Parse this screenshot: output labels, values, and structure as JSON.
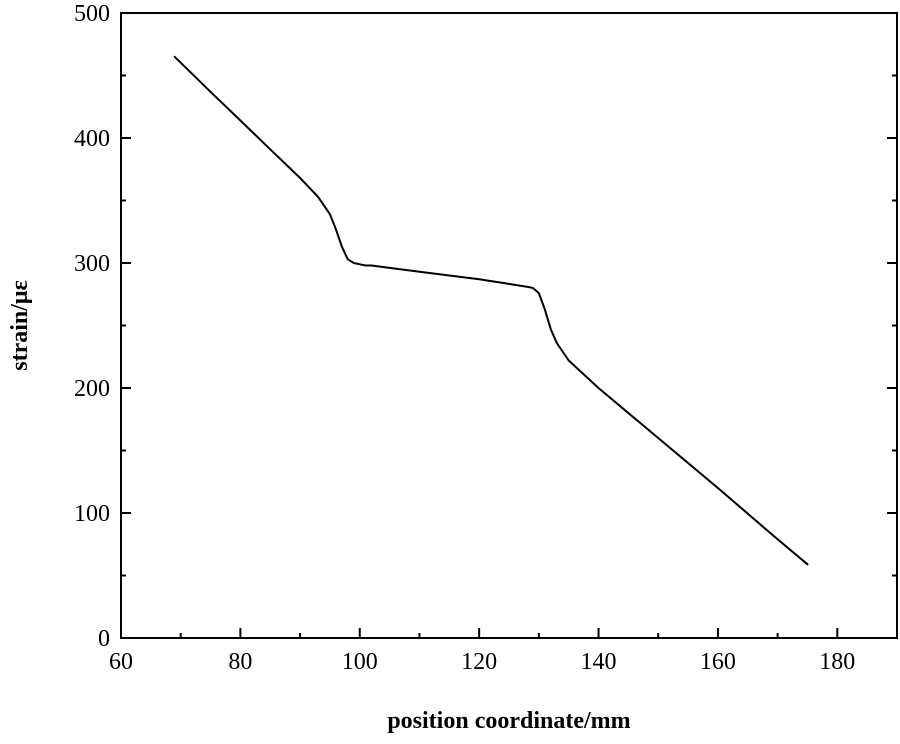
{
  "chart_data": {
    "type": "line",
    "title": "",
    "xlabel": "position coordinate/mm",
    "ylabel": "strain/με",
    "xlim": [
      60,
      190
    ],
    "ylim": [
      0,
      500
    ],
    "xticks": [
      60,
      80,
      100,
      120,
      140,
      160,
      180
    ],
    "yticks": [
      0,
      100,
      200,
      300,
      400,
      500
    ],
    "xtick_labels": [
      "60",
      "80",
      "100",
      "120",
      "140",
      "160",
      "180"
    ],
    "ytick_labels": [
      "0",
      "100",
      "200",
      "300",
      "400",
      "500"
    ],
    "grid": false,
    "legend": "none",
    "line_color": "#000000",
    "series": [
      {
        "x": [
          69,
          75,
          80,
          85,
          90,
          93,
          95,
          96,
          97,
          98,
          99,
          100,
          101,
          102,
          110,
          120,
          128,
          129,
          130,
          131,
          132,
          133,
          135,
          140,
          150,
          160,
          170,
          175
        ],
        "y": [
          465,
          437,
          414,
          391,
          368,
          353,
          339,
          327,
          313,
          303,
          300,
          299,
          298,
          298,
          293,
          287,
          281,
          280,
          276,
          263,
          247,
          236,
          222,
          200,
          160,
          120,
          79,
          59
        ]
      }
    ]
  }
}
